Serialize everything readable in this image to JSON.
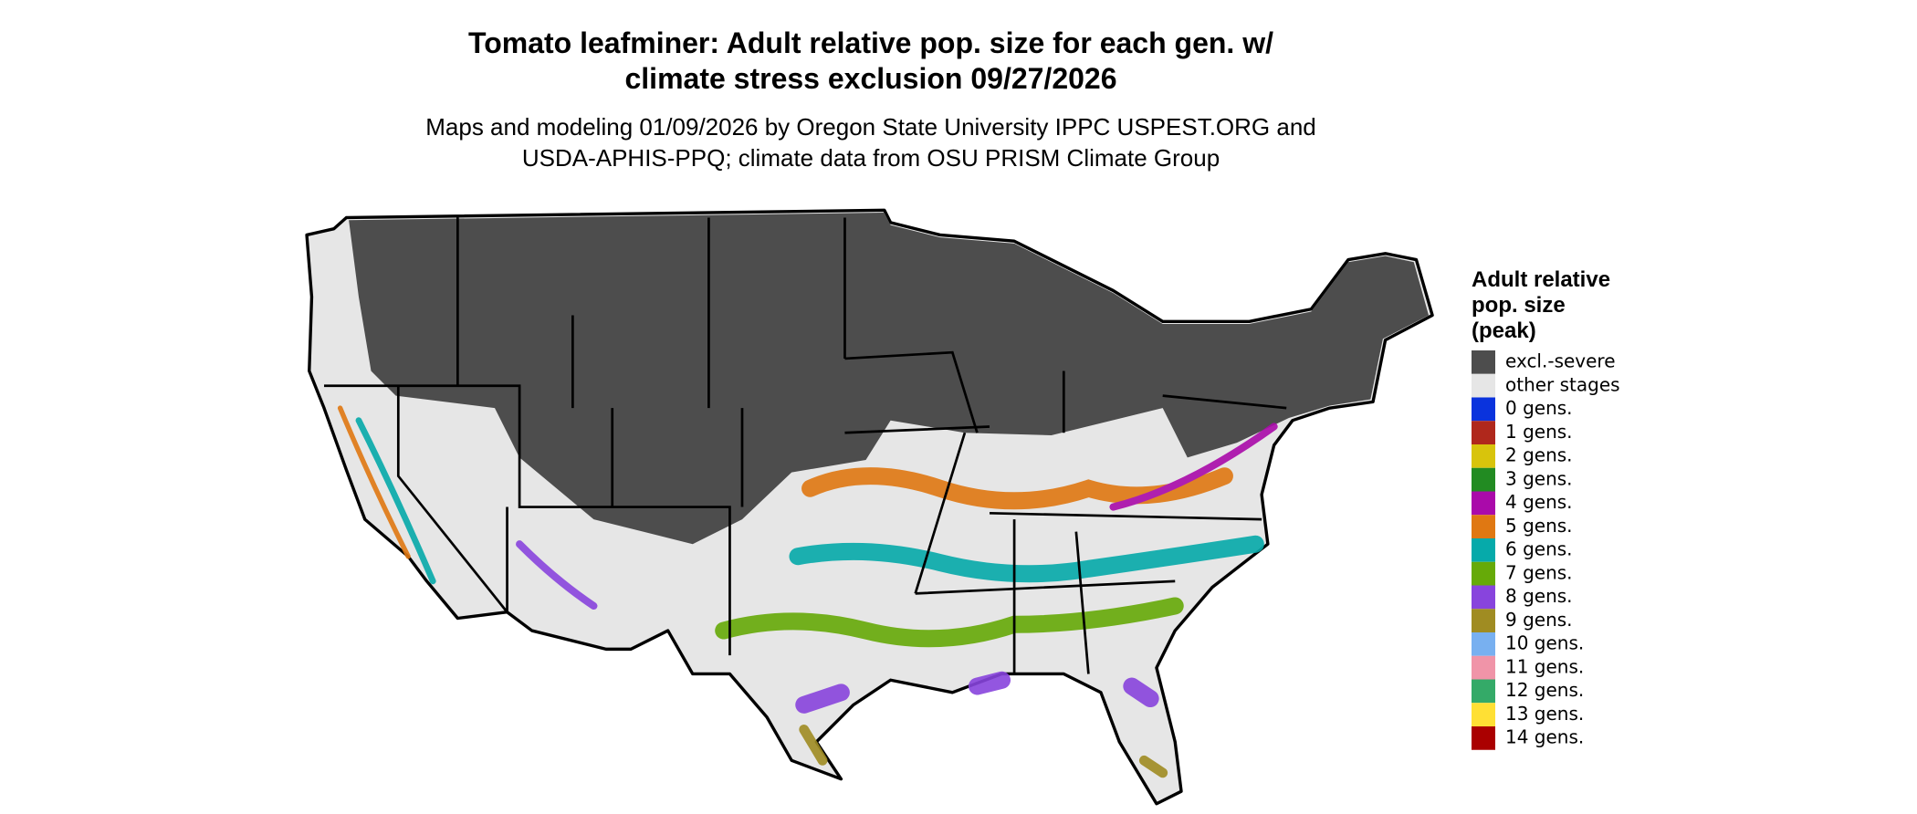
{
  "header": {
    "title": [
      "Tomato leafminer: Adult relative pop. size for each gen. w/",
      "climate stress exclusion 09/27/2026"
    ],
    "subtitle": [
      "Maps and modeling 01/09/2026 by Oregon State University IPPC USPEST.ORG and",
      "USDA-APHIS-PPQ; climate data from OSU PRISM Climate Group"
    ]
  },
  "legend": {
    "title": [
      "Adult relative",
      "pop. size",
      "(peak)"
    ],
    "items": [
      {
        "label": "excl.-severe",
        "color": "#4d4d4d"
      },
      {
        "label": "other stages",
        "color": "#e6e6e6"
      },
      {
        "label": "0 gens.",
        "color": "#0a33dd"
      },
      {
        "label": "1 gens.",
        "color": "#b0281c"
      },
      {
        "label": "2 gens.",
        "color": "#d8c40c"
      },
      {
        "label": "3 gens.",
        "color": "#228b22"
      },
      {
        "label": "4 gens.",
        "color": "#aa0aaa"
      },
      {
        "label": "5 gens.",
        "color": "#e07812"
      },
      {
        "label": "6 gens.",
        "color": "#06aaaa"
      },
      {
        "label": "7 gens.",
        "color": "#66aa08"
      },
      {
        "label": "8 gens.",
        "color": "#8844dd"
      },
      {
        "label": "9 gens.",
        "color": "#a08c22"
      },
      {
        "label": "10 gens.",
        "color": "#78b0f0"
      },
      {
        "label": "11 gens.",
        "color": "#f094a8"
      },
      {
        "label": "12 gens.",
        "color": "#34aa68"
      },
      {
        "label": "13 gens.",
        "color": "#ffe034"
      },
      {
        "label": "14 gens.",
        "color": "#aa0000"
      }
    ]
  }
}
